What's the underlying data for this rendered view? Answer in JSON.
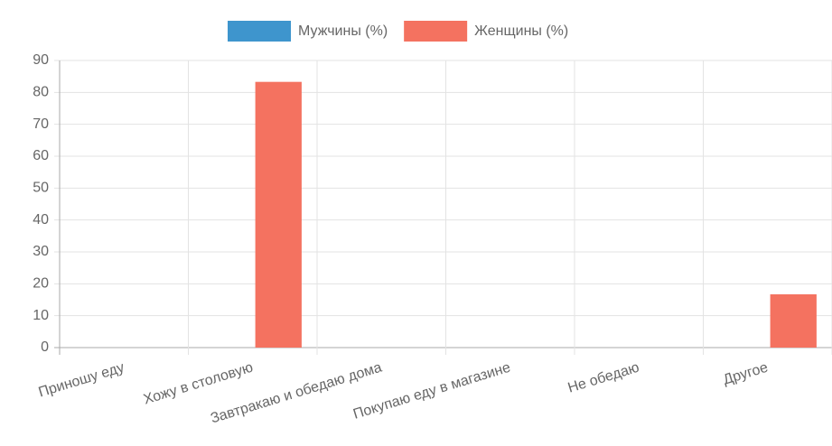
{
  "chart_data": {
    "type": "bar",
    "categories": [
      "Приношу еду",
      "Хожу в столовую",
      "Завтракаю и обедаю дома",
      "Покупаю еду в магазине",
      "Не обедаю",
      "Другое"
    ],
    "series": [
      {
        "name": "Мужчины (%)",
        "color": "#3e95cd",
        "values": [
          0,
          0,
          0,
          0,
          0,
          0
        ]
      },
      {
        "name": "Женщины (%)",
        "color": "#f47260",
        "values": [
          0,
          83.3,
          0,
          0,
          0,
          16.7
        ]
      }
    ],
    "ylim": [
      0,
      90
    ],
    "yticks": [
      0,
      10,
      20,
      30,
      40,
      50,
      60,
      70,
      80,
      90
    ],
    "grid": true,
    "legend": "top"
  }
}
